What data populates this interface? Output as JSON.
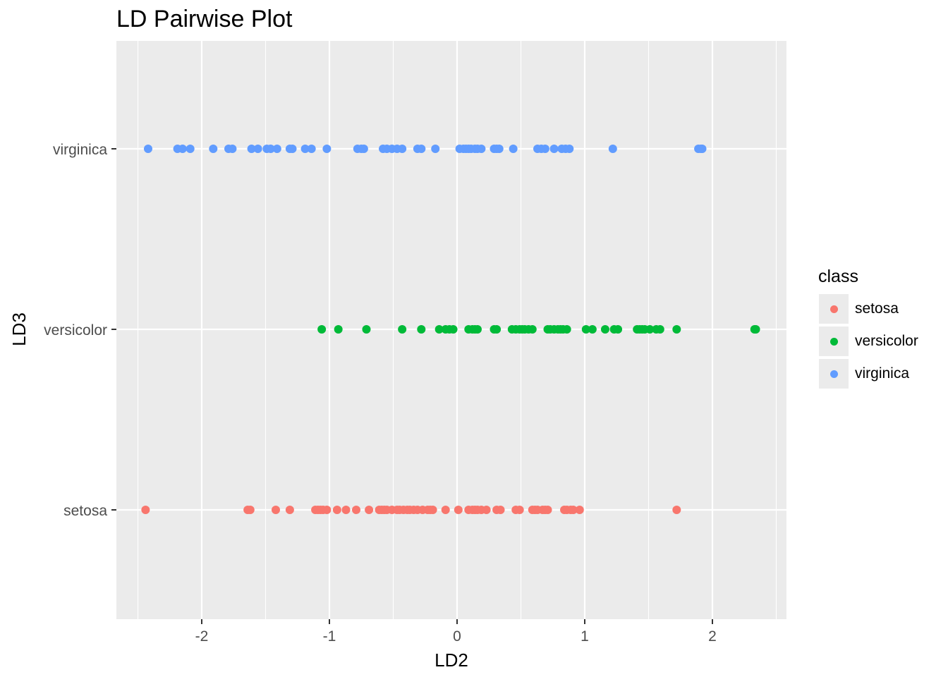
{
  "colors": {
    "setosa": "#F8766D",
    "versicolor": "#00BA38",
    "virginica": "#619CFF"
  },
  "chart_data": {
    "type": "scatter",
    "title": "LD Pairwise Plot",
    "xlabel": "LD2",
    "ylabel": "LD3",
    "xlim": [
      -2.6,
      2.6
    ],
    "x_ticks": [
      -2,
      -1,
      0,
      1,
      2
    ],
    "x_tick_labels": [
      "-2",
      "-1",
      "0",
      "1",
      "2"
    ],
    "categories": [
      "setosa",
      "versicolor",
      "virginica"
    ],
    "legend_title": "class",
    "legend_position": "right",
    "series": [
      {
        "name": "setosa",
        "y": "setosa",
        "x": [
          -2.44,
          -1.64,
          -1.62,
          -1.42,
          -1.31,
          -1.11,
          -1.09,
          -1.07,
          -1.05,
          -1.02,
          -0.94,
          -0.87,
          -0.79,
          -0.69,
          -0.61,
          -0.59,
          -0.57,
          -0.55,
          -0.51,
          -0.47,
          -0.45,
          -0.42,
          -0.39,
          -0.37,
          -0.34,
          -0.31,
          -0.27,
          -0.23,
          -0.21,
          -0.19,
          -0.09,
          0.01,
          0.09,
          0.12,
          0.14,
          0.16,
          0.19,
          0.23,
          0.31,
          0.34,
          0.46,
          0.49,
          0.59,
          0.61,
          0.63,
          0.67,
          0.69,
          0.71,
          0.84,
          0.86,
          0.89,
          0.91,
          0.96,
          1.72
        ]
      },
      {
        "name": "versicolor",
        "y": "versicolor",
        "x": [
          -1.06,
          -0.93,
          -0.71,
          -0.43,
          -0.28,
          -0.14,
          -0.09,
          -0.06,
          -0.03,
          0.09,
          0.12,
          0.14,
          0.16,
          0.29,
          0.31,
          0.43,
          0.46,
          0.49,
          0.51,
          0.53,
          0.56,
          0.59,
          0.71,
          0.73,
          0.76,
          0.79,
          0.81,
          0.83,
          0.86,
          1.01,
          1.06,
          1.16,
          1.23,
          1.26,
          1.41,
          1.43,
          1.45,
          1.47,
          1.51,
          1.56,
          1.59,
          1.72,
          2.33,
          2.34
        ]
      },
      {
        "name": "virginica",
        "y": "virginica",
        "x": [
          -2.42,
          -2.19,
          -2.15,
          -2.09,
          -1.91,
          -1.79,
          -1.76,
          -1.61,
          -1.56,
          -1.49,
          -1.46,
          -1.41,
          -1.31,
          -1.29,
          -1.19,
          -1.14,
          -1.02,
          -0.78,
          -0.75,
          -0.73,
          -0.58,
          -0.55,
          -0.51,
          -0.47,
          -0.43,
          -0.31,
          -0.28,
          -0.17,
          0.02,
          0.05,
          0.07,
          0.09,
          0.11,
          0.14,
          0.16,
          0.19,
          0.29,
          0.31,
          0.33,
          0.44,
          0.63,
          0.66,
          0.69,
          0.76,
          0.82,
          0.85,
          0.88,
          1.22,
          1.89,
          1.91,
          1.92
        ]
      }
    ]
  }
}
